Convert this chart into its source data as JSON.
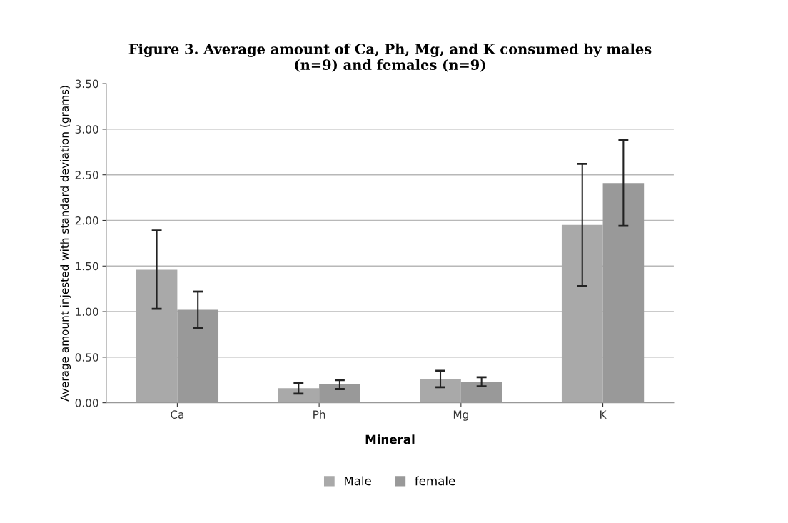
{
  "chart_data": {
    "type": "bar",
    "title": "Figure 3. Average amount of Ca, Ph, Mg, and K consumed by males\n(n=9) and females (n=9)",
    "xlabel": "Mineral",
    "ylabel": "Average amount injested with standard deviation (grams)",
    "categories": [
      "Ca",
      "Ph",
      "Mg",
      "K"
    ],
    "series": [
      {
        "name": "Male",
        "color": "#a9a9a9",
        "values": [
          1.46,
          0.16,
          0.26,
          1.95
        ],
        "errors": [
          0.43,
          0.06,
          0.09,
          0.67
        ]
      },
      {
        "name": "female",
        "color": "#999999",
        "values": [
          1.02,
          0.2,
          0.23,
          2.41
        ],
        "errors": [
          0.2,
          0.05,
          0.05,
          0.47
        ]
      }
    ],
    "ylim": [
      0,
      3.5
    ],
    "yticks": [
      {
        "value": 0,
        "label": "0.00"
      },
      {
        "value": 0.5,
        "label": "0.50"
      },
      {
        "value": 1,
        "label": "1.00"
      },
      {
        "value": 1.5,
        "label": "1.50"
      },
      {
        "value": 2,
        "label": "2.00"
      },
      {
        "value": 2.5,
        "label": "2.50"
      },
      {
        "value": 3,
        "label": "3.00"
      },
      {
        "value": 3.5,
        "label": "3.50"
      }
    ],
    "grid": "y",
    "legend": "bottom"
  }
}
